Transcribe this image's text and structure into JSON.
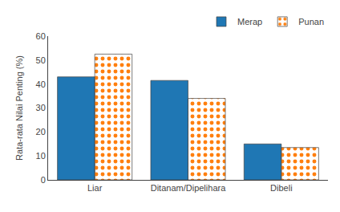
{
  "chart_data": {
    "type": "bar",
    "categories": [
      "Liar",
      "Ditanam/Dipelihara",
      "Dibeli"
    ],
    "series": [
      {
        "name": "Merap",
        "values": [
          43,
          41.5,
          15
        ]
      },
      {
        "name": "Punan",
        "values": [
          52.5,
          34,
          13.5
        ]
      }
    ],
    "ylabel": "Rata-rata Nilai Penting (%)",
    "ylim": [
      0,
      60
    ],
    "yticks": [
      0,
      10,
      20,
      30,
      40,
      50,
      60
    ],
    "grid": false,
    "legend": "upper right"
  }
}
